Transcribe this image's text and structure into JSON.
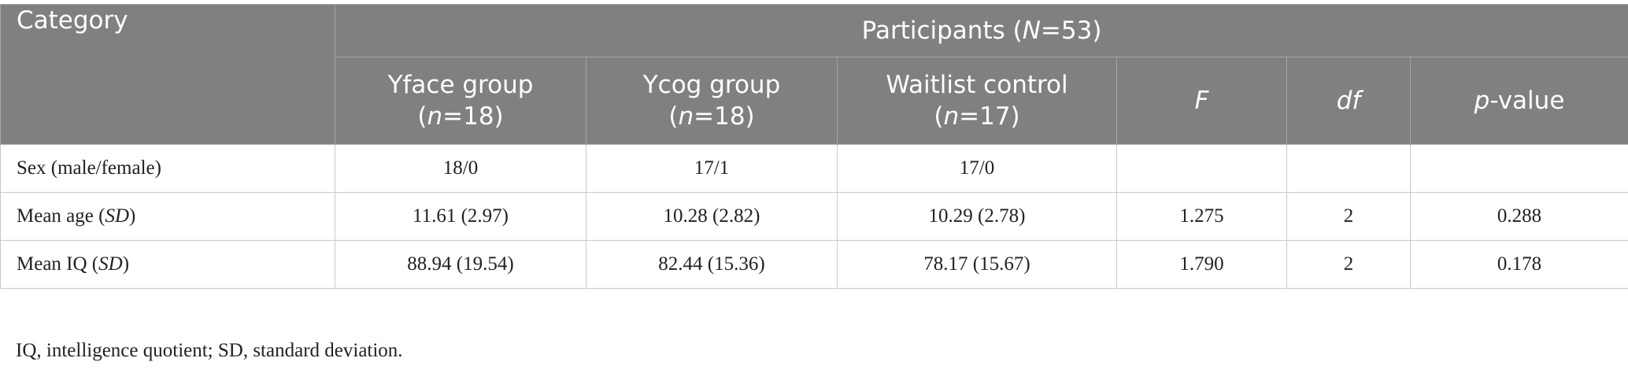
{
  "table": {
    "header": {
      "category": "Category",
      "participants": [
        "Participants (",
        "N",
        "=53)"
      ],
      "columns": [
        [
          "Yface group",
          "(",
          "n",
          "=18)"
        ],
        [
          "Ycog group",
          "(",
          "n",
          "=18)"
        ],
        [
          "Waitlist control",
          "(",
          "n",
          "=17)"
        ],
        [
          "F"
        ],
        [
          "df"
        ],
        [
          "p",
          "-value"
        ]
      ]
    },
    "rows": [
      {
        "label": [
          "Sex (male/female)"
        ],
        "cells": [
          "18/0",
          "17/1",
          "17/0",
          "",
          "",
          ""
        ]
      },
      {
        "label": [
          "Mean age (",
          "SD",
          ")"
        ],
        "cells": [
          "11.61 (2.97)",
          "10.28 (2.82)",
          "10.29 (2.78)",
          "1.275",
          "2",
          "0.288"
        ]
      },
      {
        "label": [
          "Mean IQ (",
          "SD",
          ")"
        ],
        "cells": [
          "88.94 (19.54)",
          "82.44 (15.36)",
          "78.17 (15.67)",
          "1.790",
          "2",
          "0.178"
        ]
      }
    ],
    "footnote": "IQ, intelligence quotient; SD, standard deviation."
  }
}
